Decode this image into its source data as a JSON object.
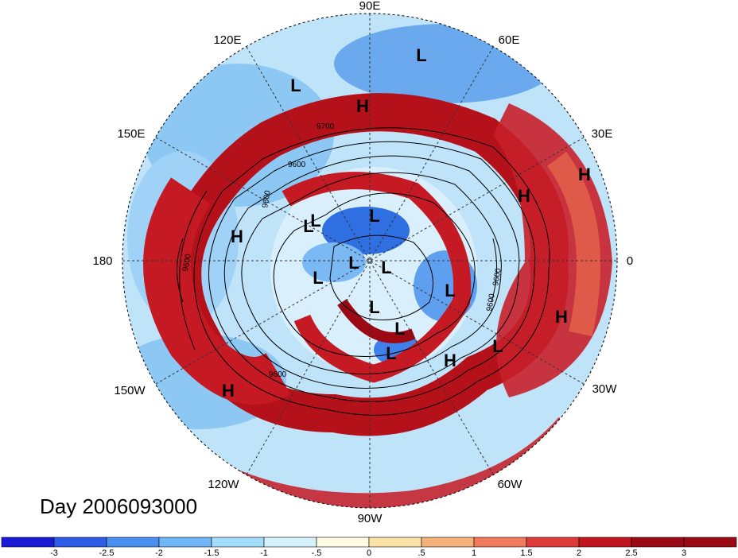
{
  "title": "Day 2006093000",
  "longitude_labels": [
    "90E",
    "60E",
    "30E",
    "0",
    "30W",
    "60W",
    "90W",
    "120W",
    "150W",
    "180",
    "150E",
    "120E"
  ],
  "contour_labels": [
    "9700",
    "9600",
    "9600",
    "9600",
    "9600",
    "9600",
    "9600"
  ],
  "pressure_centers": [
    "L",
    "L",
    "H",
    "L",
    "H",
    "H",
    "L",
    "L",
    "L",
    "L",
    "L",
    "L",
    "L",
    "L",
    "H",
    "H",
    "L",
    "H",
    "L",
    "H"
  ],
  "colorbar": {
    "tick_labels": [
      "-3",
      "-2.5",
      "-2",
      "-1.5",
      "-1",
      "-.5",
      "0",
      ".5",
      "1",
      "1.5",
      "2",
      "2.5",
      "3"
    ],
    "colors": [
      "#1a1ad6",
      "#2d5ce8",
      "#4a8ef0",
      "#71b7f7",
      "#a4dcfb",
      "#d7f2fd",
      "#fdfbe3",
      "#fbe3a8",
      "#f6b27a",
      "#ef7a5c",
      "#e03b3b",
      "#c1141e",
      "#9b0a14"
    ]
  }
}
